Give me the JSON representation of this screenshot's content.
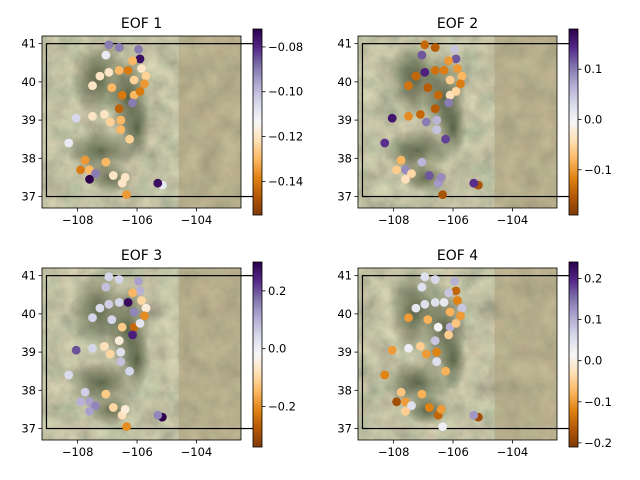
{
  "figure": {
    "basemap": "satellite-terrain",
    "colormap": "PuOr"
  },
  "chart_data": [
    {
      "type": "scatter",
      "title": "EOF 1",
      "xlim": [
        -109.2,
        -102.5
      ],
      "ylim": [
        36.7,
        41.2
      ],
      "xticks": [
        -108,
        -106,
        -104
      ],
      "xtick_labels": [
        "−108",
        "−106",
        "−104"
      ],
      "yticks": [
        37,
        38,
        39,
        40,
        41
      ],
      "yticks_labels": [
        "37",
        "38",
        "39",
        "40",
        "41"
      ],
      "colorbar": {
        "ticks": [
          -0.08,
          -0.1,
          -0.12,
          -0.14
        ],
        "tick_labels": [
          "−0.08",
          "−0.10",
          "−0.12",
          "−0.14"
        ],
        "range": [
          -0.155,
          -0.072
        ]
      },
      "points": [
        {
          "lon": -106.95,
          "lat": 40.97,
          "value": -0.09
        },
        {
          "lon": -106.6,
          "lat": 40.9,
          "value": -0.09
        },
        {
          "lon": -105.95,
          "lat": 40.85,
          "value": -0.09
        },
        {
          "lon": -105.9,
          "lat": 40.6,
          "value": -0.075
        },
        {
          "lon": -106.15,
          "lat": 40.55,
          "value": -0.13
        },
        {
          "lon": -106.3,
          "lat": 40.3,
          "value": -0.14
        },
        {
          "lon": -106.6,
          "lat": 40.3,
          "value": -0.13
        },
        {
          "lon": -105.85,
          "lat": 40.35,
          "value": -0.12
        },
        {
          "lon": -105.7,
          "lat": 40.15,
          "value": -0.125
        },
        {
          "lon": -105.75,
          "lat": 39.95,
          "value": -0.135
        },
        {
          "lon": -106.1,
          "lat": 40.05,
          "value": -0.125
        },
        {
          "lon": -106.95,
          "lat": 40.25,
          "value": -0.12
        },
        {
          "lon": -107.25,
          "lat": 40.15,
          "value": -0.12
        },
        {
          "lon": -107.05,
          "lat": 40.7,
          "value": -0.11
        },
        {
          "lon": -107.5,
          "lat": 39.9,
          "value": -0.12
        },
        {
          "lon": -106.85,
          "lat": 39.85,
          "value": -0.13
        },
        {
          "lon": -106.5,
          "lat": 39.65,
          "value": -0.14
        },
        {
          "lon": -106.1,
          "lat": 39.65,
          "value": -0.13
        },
        {
          "lon": -106.15,
          "lat": 39.45,
          "value": -0.09
        },
        {
          "lon": -105.9,
          "lat": 39.75,
          "value": -0.14
        },
        {
          "lon": -106.6,
          "lat": 39.3,
          "value": -0.145
        },
        {
          "lon": -106.55,
          "lat": 39.0,
          "value": -0.13
        },
        {
          "lon": -107.1,
          "lat": 39.15,
          "value": -0.12
        },
        {
          "lon": -106.9,
          "lat": 38.95,
          "value": -0.125
        },
        {
          "lon": -107.5,
          "lat": 39.1,
          "value": -0.12
        },
        {
          "lon": -108.05,
          "lat": 39.05,
          "value": -0.105
        },
        {
          "lon": -106.55,
          "lat": 38.75,
          "value": -0.13
        },
        {
          "lon": -106.25,
          "lat": 38.5,
          "value": -0.125
        },
        {
          "lon": -108.3,
          "lat": 38.4,
          "value": -0.11
        },
        {
          "lon": -107.75,
          "lat": 37.95,
          "value": -0.135
        },
        {
          "lon": -107.9,
          "lat": 37.7,
          "value": -0.14
        },
        {
          "lon": -107.6,
          "lat": 37.7,
          "value": -0.13
        },
        {
          "lon": -107.4,
          "lat": 37.6,
          "value": -0.09
        },
        {
          "lon": -107.05,
          "lat": 37.9,
          "value": -0.13
        },
        {
          "lon": -106.8,
          "lat": 37.55,
          "value": -0.12
        },
        {
          "lon": -106.5,
          "lat": 37.35,
          "value": -0.12
        },
        {
          "lon": -107.6,
          "lat": 37.45,
          "value": -0.07
        },
        {
          "lon": -106.35,
          "lat": 37.05,
          "value": -0.135
        },
        {
          "lon": -105.15,
          "lat": 37.3,
          "value": -0.11
        },
        {
          "lon": -105.3,
          "lat": 37.35,
          "value": -0.075
        },
        {
          "lon": -106.4,
          "lat": 37.5,
          "value": -0.12
        }
      ]
    },
    {
      "type": "scatter",
      "title": "EOF 2",
      "xlim": [
        -109.2,
        -102.5
      ],
      "ylim": [
        36.7,
        41.2
      ],
      "xticks": [
        -108,
        -106,
        -104
      ],
      "xtick_labels": [
        "−108",
        "−106",
        "−104"
      ],
      "yticks": [
        37,
        38,
        39,
        40,
        41
      ],
      "yticks_labels": [
        "37",
        "38",
        "39",
        "40",
        "41"
      ],
      "colorbar": {
        "ticks": [
          0.1,
          0.0,
          -0.1
        ],
        "tick_labels": [
          "0.1",
          "0.0",
          "−0.1"
        ],
        "range": [
          -0.19,
          0.18
        ]
      },
      "points": [
        {
          "lon": -106.95,
          "lat": 40.97,
          "value": -0.14
        },
        {
          "lon": -106.6,
          "lat": 40.9,
          "value": -0.15
        },
        {
          "lon": -105.95,
          "lat": 40.85,
          "value": 0.05
        },
        {
          "lon": -105.9,
          "lat": 40.6,
          "value": 0.12
        },
        {
          "lon": -106.15,
          "lat": 40.55,
          "value": -0.1
        },
        {
          "lon": -106.3,
          "lat": 40.3,
          "value": -0.12
        },
        {
          "lon": -106.6,
          "lat": 40.3,
          "value": -0.13
        },
        {
          "lon": -105.85,
          "lat": 40.35,
          "value": -0.1
        },
        {
          "lon": -105.7,
          "lat": 40.15,
          "value": -0.08
        },
        {
          "lon": -105.75,
          "lat": 39.95,
          "value": -0.12
        },
        {
          "lon": -106.1,
          "lat": 40.05,
          "value": -0.06
        },
        {
          "lon": -106.95,
          "lat": 40.25,
          "value": 0.15
        },
        {
          "lon": -107.25,
          "lat": 40.15,
          "value": -0.14
        },
        {
          "lon": -107.05,
          "lat": 40.7,
          "value": 0.12
        },
        {
          "lon": -107.5,
          "lat": 39.9,
          "value": -0.13
        },
        {
          "lon": -106.85,
          "lat": 39.85,
          "value": -0.15
        },
        {
          "lon": -106.5,
          "lat": 39.65,
          "value": -0.14
        },
        {
          "lon": -106.1,
          "lat": 39.65,
          "value": -0.04
        },
        {
          "lon": -106.15,
          "lat": 39.45,
          "value": 0.1
        },
        {
          "lon": -105.9,
          "lat": 39.75,
          "value": -0.05
        },
        {
          "lon": -106.6,
          "lat": 39.3,
          "value": -0.15
        },
        {
          "lon": -106.55,
          "lat": 39.0,
          "value": 0.06
        },
        {
          "lon": -107.1,
          "lat": 39.15,
          "value": -0.14
        },
        {
          "lon": -106.9,
          "lat": 38.95,
          "value": 0.1
        },
        {
          "lon": -107.5,
          "lat": 39.1,
          "value": -0.11
        },
        {
          "lon": -108.05,
          "lat": 39.05,
          "value": 0.16
        },
        {
          "lon": -106.55,
          "lat": 38.75,
          "value": 0.05
        },
        {
          "lon": -106.25,
          "lat": 38.5,
          "value": 0.13
        },
        {
          "lon": -108.3,
          "lat": 38.4,
          "value": 0.14
        },
        {
          "lon": -107.75,
          "lat": 37.95,
          "value": -0.08
        },
        {
          "lon": -107.9,
          "lat": 37.7,
          "value": -0.06
        },
        {
          "lon": -107.6,
          "lat": 37.7,
          "value": 0.09
        },
        {
          "lon": -107.4,
          "lat": 37.6,
          "value": -0.05
        },
        {
          "lon": -107.05,
          "lat": 37.9,
          "value": 0.06
        },
        {
          "lon": -106.8,
          "lat": 37.55,
          "value": 0.12
        },
        {
          "lon": -106.5,
          "lat": 37.35,
          "value": 0.08
        },
        {
          "lon": -107.6,
          "lat": 37.45,
          "value": -0.04
        },
        {
          "lon": -106.35,
          "lat": 37.05,
          "value": -0.16
        },
        {
          "lon": -105.15,
          "lat": 37.3,
          "value": -0.16
        },
        {
          "lon": -105.3,
          "lat": 37.35,
          "value": 0.14
        },
        {
          "lon": -106.4,
          "lat": 37.5,
          "value": 0.09
        }
      ]
    },
    {
      "type": "scatter",
      "title": "EOF 3",
      "xlim": [
        -109.2,
        -102.5
      ],
      "ylim": [
        36.7,
        41.2
      ],
      "xticks": [
        -108,
        -106,
        -104
      ],
      "xtick_labels": [
        "−108",
        "−106",
        "−104"
      ],
      "yticks": [
        37,
        38,
        39,
        40,
        41
      ],
      "yticks_labels": [
        "37",
        "38",
        "39",
        "40",
        "41"
      ],
      "colorbar": {
        "ticks": [
          0.2,
          0.0,
          -0.2
        ],
        "tick_labels": [
          "0.2",
          "0.0",
          "−0.2"
        ],
        "range": [
          -0.34,
          0.3
        ]
      },
      "points": [
        {
          "lon": -106.95,
          "lat": 40.97,
          "value": 0.05
        },
        {
          "lon": -106.6,
          "lat": 40.9,
          "value": 0.05
        },
        {
          "lon": -105.95,
          "lat": 40.85,
          "value": 0.12
        },
        {
          "lon": -105.9,
          "lat": 40.6,
          "value": 0.1
        },
        {
          "lon": -106.15,
          "lat": 40.55,
          "value": -0.15
        },
        {
          "lon": -106.3,
          "lat": 40.3,
          "value": 0.28
        },
        {
          "lon": -106.6,
          "lat": 40.3,
          "value": 0.05
        },
        {
          "lon": -105.85,
          "lat": 40.35,
          "value": -0.1
        },
        {
          "lon": -105.7,
          "lat": 40.15,
          "value": -0.05
        },
        {
          "lon": -105.75,
          "lat": 39.95,
          "value": -0.2
        },
        {
          "lon": -106.1,
          "lat": 40.05,
          "value": 0.15
        },
        {
          "lon": -106.95,
          "lat": 40.25,
          "value": 0.06
        },
        {
          "lon": -107.25,
          "lat": 40.15,
          "value": 0.04
        },
        {
          "lon": -107.05,
          "lat": 40.7,
          "value": 0.08
        },
        {
          "lon": -107.5,
          "lat": 39.9,
          "value": 0.05
        },
        {
          "lon": -106.85,
          "lat": 39.85,
          "value": 0.05
        },
        {
          "lon": -106.5,
          "lat": 39.65,
          "value": -0.12
        },
        {
          "lon": -106.1,
          "lat": 39.65,
          "value": -0.25
        },
        {
          "lon": -106.15,
          "lat": 39.45,
          "value": 0.25
        },
        {
          "lon": -105.9,
          "lat": 39.75,
          "value": 0.02
        },
        {
          "lon": -106.6,
          "lat": 39.3,
          "value": -0.05
        },
        {
          "lon": -106.55,
          "lat": 39.0,
          "value": 0.03
        },
        {
          "lon": -107.1,
          "lat": 39.15,
          "value": -0.08
        },
        {
          "lon": -106.9,
          "lat": 38.95,
          "value": -0.1
        },
        {
          "lon": -107.5,
          "lat": 39.1,
          "value": 0.05
        },
        {
          "lon": -108.05,
          "lat": 39.05,
          "value": 0.2
        },
        {
          "lon": -106.55,
          "lat": 38.75,
          "value": 0.08
        },
        {
          "lon": -106.25,
          "lat": 38.5,
          "value": 0.05
        },
        {
          "lon": -108.3,
          "lat": 38.4,
          "value": 0.04
        },
        {
          "lon": -107.75,
          "lat": 37.95,
          "value": 0.06
        },
        {
          "lon": -107.9,
          "lat": 37.7,
          "value": 0.1
        },
        {
          "lon": -107.6,
          "lat": 37.7,
          "value": 0.12
        },
        {
          "lon": -107.4,
          "lat": 37.6,
          "value": 0.15
        },
        {
          "lon": -107.05,
          "lat": 37.9,
          "value": -0.12
        },
        {
          "lon": -106.8,
          "lat": 37.55,
          "value": -0.1
        },
        {
          "lon": -106.5,
          "lat": 37.35,
          "value": -0.08
        },
        {
          "lon": -107.6,
          "lat": 37.45,
          "value": 0.12
        },
        {
          "lon": -106.35,
          "lat": 37.05,
          "value": -0.2
        },
        {
          "lon": -105.15,
          "lat": 37.3,
          "value": 0.3
        },
        {
          "lon": -105.3,
          "lat": 37.35,
          "value": 0.15
        },
        {
          "lon": -106.4,
          "lat": 37.5,
          "value": -0.05
        }
      ]
    },
    {
      "type": "scatter",
      "title": "EOF 4",
      "xlim": [
        -109.2,
        -102.5
      ],
      "ylim": [
        36.7,
        41.2
      ],
      "xticks": [
        -108,
        -106,
        -104
      ],
      "xtick_labels": [
        "−108",
        "−106",
        "−104"
      ],
      "yticks": [
        37,
        38,
        39,
        40,
        41
      ],
      "yticks_labels": [
        "37",
        "38",
        "39",
        "40",
        "41"
      ],
      "colorbar": {
        "ticks": [
          0.2,
          0.1,
          0.0,
          -0.1,
          -0.2
        ],
        "tick_labels": [
          "0.2",
          "0.1",
          "0.0",
          "−0.1",
          "−0.2"
        ],
        "range": [
          -0.21,
          0.24
        ]
      },
      "points": [
        {
          "lon": -106.95,
          "lat": 40.97,
          "value": 0.05
        },
        {
          "lon": -106.6,
          "lat": 40.9,
          "value": 0.06
        },
        {
          "lon": -105.95,
          "lat": 40.85,
          "value": 0.1
        },
        {
          "lon": -105.9,
          "lat": 40.6,
          "value": -0.15
        },
        {
          "lon": -106.15,
          "lat": 40.55,
          "value": 0.08
        },
        {
          "lon": -106.3,
          "lat": 40.3,
          "value": 0.04
        },
        {
          "lon": -106.6,
          "lat": 40.3,
          "value": 0.05
        },
        {
          "lon": -105.85,
          "lat": 40.35,
          "value": -0.12
        },
        {
          "lon": -105.7,
          "lat": 40.15,
          "value": 0.08
        },
        {
          "lon": -105.75,
          "lat": 39.95,
          "value": -0.1
        },
        {
          "lon": -106.1,
          "lat": 40.05,
          "value": -0.08
        },
        {
          "lon": -106.95,
          "lat": 40.25,
          "value": 0.05
        },
        {
          "lon": -107.25,
          "lat": 40.15,
          "value": 0.04
        },
        {
          "lon": -107.05,
          "lat": 40.7,
          "value": 0.05
        },
        {
          "lon": -107.5,
          "lat": 39.9,
          "value": -0.1
        },
        {
          "lon": -106.85,
          "lat": 39.85,
          "value": -0.08
        },
        {
          "lon": -106.5,
          "lat": 39.65,
          "value": 0.02
        },
        {
          "lon": -106.1,
          "lat": 39.65,
          "value": 0.1
        },
        {
          "lon": -106.15,
          "lat": 39.45,
          "value": -0.05
        },
        {
          "lon": -105.9,
          "lat": 39.75,
          "value": -0.06
        },
        {
          "lon": -106.6,
          "lat": 39.3,
          "value": 0.08
        },
        {
          "lon": -106.55,
          "lat": 39.0,
          "value": -0.12
        },
        {
          "lon": -107.1,
          "lat": 39.15,
          "value": -0.05
        },
        {
          "lon": -106.9,
          "lat": 38.95,
          "value": -0.1
        },
        {
          "lon": -107.5,
          "lat": 39.1,
          "value": 0.03
        },
        {
          "lon": -108.05,
          "lat": 39.05,
          "value": -0.1
        },
        {
          "lon": -106.55,
          "lat": 38.75,
          "value": 0.05
        },
        {
          "lon": -106.25,
          "lat": 38.5,
          "value": -0.08
        },
        {
          "lon": -108.3,
          "lat": 38.4,
          "value": -0.12
        },
        {
          "lon": -107.75,
          "lat": 37.95,
          "value": -0.06
        },
        {
          "lon": -107.9,
          "lat": 37.7,
          "value": -0.18
        },
        {
          "lon": -107.6,
          "lat": 37.7,
          "value": -0.1
        },
        {
          "lon": -107.4,
          "lat": 37.6,
          "value": 0.05
        },
        {
          "lon": -107.05,
          "lat": 37.9,
          "value": -0.08
        },
        {
          "lon": -106.8,
          "lat": 37.55,
          "value": -0.12
        },
        {
          "lon": -106.5,
          "lat": 37.35,
          "value": -0.15
        },
        {
          "lon": -107.6,
          "lat": 37.45,
          "value": -0.05
        },
        {
          "lon": -106.35,
          "lat": 37.05,
          "value": 0.03
        },
        {
          "lon": -105.15,
          "lat": 37.3,
          "value": -0.18
        },
        {
          "lon": -105.3,
          "lat": 37.35,
          "value": 0.12
        },
        {
          "lon": -106.4,
          "lat": 37.5,
          "value": -0.1
        }
      ]
    }
  ]
}
